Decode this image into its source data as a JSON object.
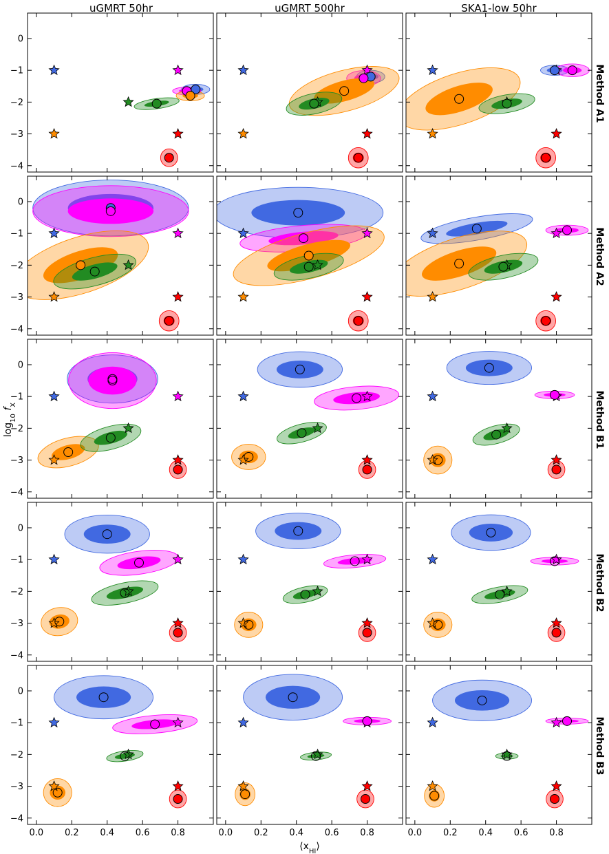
{
  "figure": {
    "column_titles": [
      "uGMRT 50hr",
      "uGMRT 500hr",
      "SKA1-low 50hr"
    ],
    "row_labels": [
      "Method A1",
      "Method A2",
      "Method B1",
      "Method B2",
      "Method B3"
    ],
    "xlabel": "⟨x",
    "xlabel_sub": "HI",
    "xlabel_close": "⟩",
    "ylabel": "log",
    "ylabel_sub": "10",
    "ylabel_f": " f",
    "ylabel_fsub": "X"
  },
  "colors": {
    "blue": "#4169e1",
    "magenta": "#ff00ff",
    "green": "#228b22",
    "orange": "#ff8c00",
    "red": "#ff0000"
  },
  "chart_data": {
    "type": "scatter",
    "xlim": [
      -0.05,
      1.0
    ],
    "ylim": [
      -4.2,
      0.8
    ],
    "xticks": [
      "0.0",
      "0.2",
      "0.4",
      "0.6",
      "0.8"
    ],
    "yticks": [
      "0",
      "−1",
      "−2",
      "−3",
      "−4"
    ],
    "truths": [
      {
        "name": "blue",
        "x": 0.1,
        "y": -1.0
      },
      {
        "name": "magenta",
        "x": 0.8,
        "y": -1.0
      },
      {
        "name": "green",
        "x": 0.52,
        "y": -2.0
      },
      {
        "name": "orange",
        "x": 0.1,
        "y": -3.0
      },
      {
        "name": "red",
        "x": 0.8,
        "y": -3.0
      }
    ],
    "panels": [
      [
        {
          "blue": {
            "x": 0.9,
            "y": -1.6,
            "w": 0.1,
            "h": 0.2,
            "a": 0
          },
          "magenta": {
            "x": 0.85,
            "y": -1.65,
            "w": 0.1,
            "h": 0.15,
            "a": 0
          },
          "green": {
            "x": 0.68,
            "y": -2.05,
            "w": 0.16,
            "h": 0.2,
            "a": 8
          },
          "orange": {
            "x": 0.87,
            "y": -1.8,
            "w": 0.1,
            "h": 0.2,
            "a": 0
          },
          "red": {
            "x": 0.75,
            "y": -3.75,
            "w": 0.06,
            "h": 0.35,
            "a": 0
          }
        },
        {
          "blue": {
            "x": 0.82,
            "y": -1.2,
            "w": 0.1,
            "h": 0.25,
            "a": 0
          },
          "magenta": {
            "x": 0.78,
            "y": -1.25,
            "w": 0.12,
            "h": 0.3,
            "a": 0
          },
          "green": {
            "x": 0.5,
            "y": -2.05,
            "w": 0.2,
            "h": 0.4,
            "a": 12
          },
          "orange": {
            "x": 0.67,
            "y": -1.65,
            "w": 0.4,
            "h": 0.8,
            "a": 15
          },
          "red": {
            "x": 0.75,
            "y": -3.75,
            "w": 0.07,
            "h": 0.4,
            "a": 0
          }
        },
        {
          "blue": {
            "x": 0.79,
            "y": -1.0,
            "w": 0.1,
            "h": 0.2,
            "a": 0
          },
          "magenta": {
            "x": 0.89,
            "y": -1.0,
            "w": 0.12,
            "h": 0.25,
            "a": 0
          },
          "green": {
            "x": 0.52,
            "y": -2.05,
            "w": 0.2,
            "h": 0.35,
            "a": 10
          },
          "orange": {
            "x": 0.25,
            "y": -1.9,
            "w": 0.45,
            "h": 1.0,
            "a": 18
          },
          "red": {
            "x": 0.74,
            "y": -3.75,
            "w": 0.07,
            "h": 0.4,
            "a": 0
          }
        }
      ],
      [
        {
          "blue": {
            "x": 0.42,
            "y": -0.2,
            "w": 0.55,
            "h": 1.1,
            "a": 0
          },
          "magenta": {
            "x": 0.42,
            "y": -0.3,
            "w": 0.55,
            "h": 1.0,
            "a": 0
          },
          "green": {
            "x": 0.33,
            "y": -2.2,
            "w": 0.3,
            "h": 0.55,
            "a": 15
          },
          "orange": {
            "x": 0.25,
            "y": -2.0,
            "w": 0.5,
            "h": 1.1,
            "a": 18
          },
          "red": {
            "x": 0.75,
            "y": -3.75,
            "w": 0.07,
            "h": 0.4,
            "a": 0
          }
        },
        {
          "blue": {
            "x": 0.41,
            "y": -0.35,
            "w": 0.6,
            "h": 1.0,
            "a": 0
          },
          "magenta": {
            "x": 0.44,
            "y": -1.15,
            "w": 0.45,
            "h": 0.5,
            "a": 5
          },
          "green": {
            "x": 0.47,
            "y": -2.05,
            "w": 0.25,
            "h": 0.45,
            "a": 12
          },
          "orange": {
            "x": 0.47,
            "y": -1.7,
            "w": 0.55,
            "h": 0.9,
            "a": 15
          },
          "red": {
            "x": 0.75,
            "y": -3.75,
            "w": 0.07,
            "h": 0.4,
            "a": 0
          }
        },
        {
          "blue": {
            "x": 0.35,
            "y": -0.85,
            "w": 0.4,
            "h": 0.45,
            "a": 10
          },
          "magenta": {
            "x": 0.86,
            "y": -0.9,
            "w": 0.15,
            "h": 0.2,
            "a": 0
          },
          "green": {
            "x": 0.5,
            "y": -2.05,
            "w": 0.25,
            "h": 0.45,
            "a": 12
          },
          "orange": {
            "x": 0.25,
            "y": -1.95,
            "w": 0.5,
            "h": 1.0,
            "a": 18
          },
          "red": {
            "x": 0.74,
            "y": -3.75,
            "w": 0.07,
            "h": 0.4,
            "a": 0
          }
        }
      ],
      [
        {
          "blue": {
            "x": 0.43,
            "y": -0.45,
            "w": 0.32,
            "h": 0.95,
            "a": 0
          },
          "magenta": {
            "x": 0.43,
            "y": -0.5,
            "w": 0.31,
            "h": 1.1,
            "a": 0
          },
          "green": {
            "x": 0.42,
            "y": -2.3,
            "w": 0.22,
            "h": 0.45,
            "a": 15
          },
          "orange": {
            "x": 0.18,
            "y": -2.75,
            "w": 0.22,
            "h": 0.55,
            "a": 15
          },
          "red": {
            "x": 0.8,
            "y": -3.3,
            "w": 0.06,
            "h": 0.35,
            "a": 0
          }
        },
        {
          "blue": {
            "x": 0.42,
            "y": -0.15,
            "w": 0.3,
            "h": 0.7,
            "a": 0
          },
          "magenta": {
            "x": 0.74,
            "y": -1.05,
            "w": 0.3,
            "h": 0.45,
            "a": 5
          },
          "green": {
            "x": 0.43,
            "y": -2.15,
            "w": 0.18,
            "h": 0.35,
            "a": 15
          },
          "orange": {
            "x": 0.13,
            "y": -2.9,
            "w": 0.12,
            "h": 0.5,
            "a": 0
          },
          "red": {
            "x": 0.8,
            "y": -3.3,
            "w": 0.06,
            "h": 0.35,
            "a": 0
          }
        },
        {
          "blue": {
            "x": 0.42,
            "y": -0.1,
            "w": 0.3,
            "h": 0.65,
            "a": 0
          },
          "magenta": {
            "x": 0.79,
            "y": -0.95,
            "w": 0.14,
            "h": 0.15,
            "a": 0
          },
          "green": {
            "x": 0.46,
            "y": -2.2,
            "w": 0.17,
            "h": 0.35,
            "a": 15
          },
          "orange": {
            "x": 0.13,
            "y": -3.0,
            "w": 0.1,
            "h": 0.55,
            "a": 0
          },
          "red": {
            "x": 0.8,
            "y": -3.3,
            "w": 0.06,
            "h": 0.35,
            "a": 0
          }
        }
      ],
      [
        {
          "blue": {
            "x": 0.4,
            "y": -0.2,
            "w": 0.3,
            "h": 0.75,
            "a": 0
          },
          "magenta": {
            "x": 0.58,
            "y": -1.1,
            "w": 0.28,
            "h": 0.45,
            "a": 8
          },
          "green": {
            "x": 0.5,
            "y": -2.05,
            "w": 0.24,
            "h": 0.4,
            "a": 12
          },
          "orange": {
            "x": 0.13,
            "y": -2.95,
            "w": 0.13,
            "h": 0.55,
            "a": 10
          },
          "red": {
            "x": 0.8,
            "y": -3.3,
            "w": 0.06,
            "h": 0.35,
            "a": 0
          }
        },
        {
          "blue": {
            "x": 0.41,
            "y": -0.1,
            "w": 0.3,
            "h": 0.7,
            "a": 0
          },
          "magenta": {
            "x": 0.73,
            "y": -1.05,
            "w": 0.22,
            "h": 0.25,
            "a": 5
          },
          "green": {
            "x": 0.45,
            "y": -2.1,
            "w": 0.16,
            "h": 0.3,
            "a": 12
          },
          "orange": {
            "x": 0.13,
            "y": -3.05,
            "w": 0.1,
            "h": 0.5,
            "a": 0
          },
          "red": {
            "x": 0.8,
            "y": -3.3,
            "w": 0.06,
            "h": 0.35,
            "a": 0
          }
        },
        {
          "blue": {
            "x": 0.43,
            "y": -0.15,
            "w": 0.28,
            "h": 0.7,
            "a": 0
          },
          "magenta": {
            "x": 0.79,
            "y": -1.05,
            "w": 0.17,
            "h": 0.15,
            "a": 0
          },
          "green": {
            "x": 0.48,
            "y": -2.1,
            "w": 0.2,
            "h": 0.3,
            "a": 10
          },
          "orange": {
            "x": 0.13,
            "y": -3.05,
            "w": 0.1,
            "h": 0.5,
            "a": 0
          },
          "red": {
            "x": 0.8,
            "y": -3.3,
            "w": 0.06,
            "h": 0.35,
            "a": 0
          }
        }
      ],
      [
        {
          "blue": {
            "x": 0.38,
            "y": -0.2,
            "w": 0.35,
            "h": 0.85,
            "a": 0
          },
          "magenta": {
            "x": 0.67,
            "y": -1.05,
            "w": 0.3,
            "h": 0.35,
            "a": 5
          },
          "green": {
            "x": 0.5,
            "y": -2.05,
            "w": 0.13,
            "h": 0.2,
            "a": 8
          },
          "orange": {
            "x": 0.12,
            "y": -3.2,
            "w": 0.1,
            "h": 0.55,
            "a": 0
          },
          "red": {
            "x": 0.8,
            "y": -3.4,
            "w": 0.06,
            "h": 0.35,
            "a": 0
          }
        },
        {
          "blue": {
            "x": 0.38,
            "y": -0.2,
            "w": 0.35,
            "h": 0.9,
            "a": 0
          },
          "magenta": {
            "x": 0.8,
            "y": -0.95,
            "w": 0.17,
            "h": 0.15,
            "a": 0
          },
          "green": {
            "x": 0.51,
            "y": -2.05,
            "w": 0.11,
            "h": 0.15,
            "a": 5
          },
          "orange": {
            "x": 0.11,
            "y": -3.25,
            "w": 0.07,
            "h": 0.45,
            "a": 0
          },
          "red": {
            "x": 0.79,
            "y": -3.4,
            "w": 0.06,
            "h": 0.35,
            "a": 0
          }
        },
        {
          "blue": {
            "x": 0.38,
            "y": -0.3,
            "w": 0.35,
            "h": 0.8,
            "a": 0
          },
          "magenta": {
            "x": 0.86,
            "y": -0.95,
            "w": 0.15,
            "h": 0.12,
            "a": 0
          },
          "green": {
            "x": 0.52,
            "y": -2.05,
            "w": 0.08,
            "h": 0.12,
            "a": 0
          },
          "orange": {
            "x": 0.11,
            "y": -3.3,
            "w": 0.07,
            "h": 0.45,
            "a": 0
          },
          "red": {
            "x": 0.79,
            "y": -3.4,
            "w": 0.06,
            "h": 0.35,
            "a": 0
          }
        }
      ]
    ]
  }
}
